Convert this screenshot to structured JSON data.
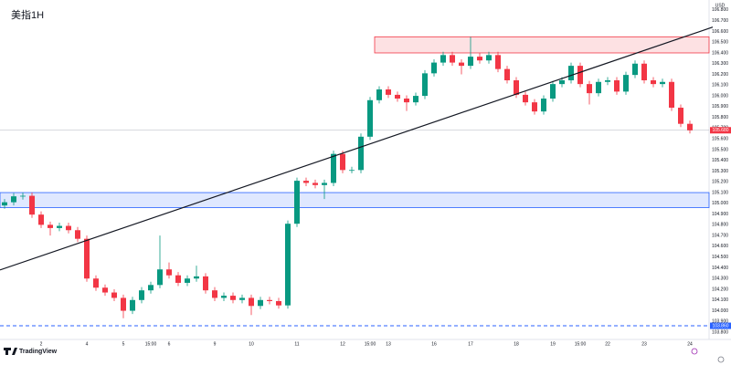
{
  "chart_data": {
    "type": "candlestick",
    "title": "美指1H",
    "currency": "USD",
    "logo": "TradingView",
    "up_color": "#089981",
    "down_color": "#f23645",
    "categories": [
      null,
      null,
      null,
      null,
      "2",
      null,
      null,
      null,
      null,
      "4",
      null,
      null,
      null,
      "5",
      null,
      null,
      "15:00",
      null,
      "6",
      null,
      null,
      null,
      null,
      "9",
      null,
      null,
      null,
      "10",
      null,
      null,
      null,
      null,
      "11",
      null,
      null,
      null,
      null,
      "12",
      null,
      null,
      "15:00",
      null,
      "13",
      null,
      null,
      null,
      null,
      "16",
      null,
      null,
      null,
      "17",
      null,
      null,
      null,
      null,
      "18",
      null,
      null,
      null,
      "19",
      null,
      null,
      "15:00",
      null,
      null,
      "22",
      null,
      null,
      null,
      "23",
      null,
      null,
      null,
      null,
      "24"
    ],
    "open": [
      104.98,
      105.01,
      105.065,
      105.07,
      104.895,
      104.8,
      104.77,
      104.79,
      104.75,
      104.67,
      104.3,
      104.215,
      104.17,
      104.12,
      104.0,
      104.1,
      104.19,
      104.24,
      104.385,
      104.33,
      104.26,
      104.3,
      104.32,
      104.19,
      104.12,
      104.14,
      104.1,
      104.12,
      104.045,
      104.1,
      104.09,
      104.05,
      104.81,
      105.21,
      105.19,
      105.17,
      105.19,
      105.46,
      105.31,
      105.31,
      105.62,
      105.96,
      106.06,
      106.01,
      105.975,
      105.94,
      106.0,
      106.21,
      106.31,
      106.38,
      106.31,
      106.28,
      106.365,
      106.33,
      106.38,
      106.25,
      106.145,
      106.01,
      105.94,
      105.855,
      105.975,
      106.11,
      106.145,
      106.28,
      106.11,
      106.025,
      106.13,
      106.145,
      106.04,
      106.195,
      106.3,
      106.145,
      106.11,
      106.13,
      105.89,
      105.74
    ],
    "high": [
      105.04,
      105.095,
      105.1,
      105.1,
      104.925,
      104.83,
      104.82,
      104.82,
      104.78,
      104.7,
      104.33,
      104.245,
      104.2,
      104.15,
      104.13,
      104.22,
      104.27,
      104.7,
      104.45,
      104.36,
      104.33,
      104.42,
      104.35,
      104.22,
      104.17,
      104.17,
      104.15,
      104.15,
      104.13,
      104.13,
      104.12,
      104.84,
      105.24,
      105.24,
      105.22,
      105.22,
      105.49,
      105.49,
      105.34,
      105.65,
      105.99,
      106.09,
      106.09,
      106.04,
      106.005,
      106.03,
      106.24,
      106.34,
      106.41,
      106.41,
      106.34,
      106.55,
      106.4,
      106.41,
      106.41,
      106.28,
      106.175,
      106.04,
      105.97,
      106.005,
      106.14,
      106.175,
      106.31,
      106.31,
      106.14,
      106.16,
      106.175,
      106.175,
      106.225,
      106.33,
      106.33,
      106.175,
      106.16,
      106.16,
      105.92,
      105.77
    ],
    "low": [
      104.95,
      104.98,
      105.035,
      104.865,
      104.77,
      104.7,
      104.74,
      104.72,
      104.64,
      104.27,
      104.185,
      104.14,
      104.09,
      103.93,
      103.97,
      104.07,
      104.16,
      104.21,
      104.3,
      104.23,
      104.23,
      104.27,
      104.16,
      104.09,
      104.09,
      104.07,
      104.07,
      103.96,
      104.015,
      104.06,
      104.02,
      104.02,
      104.78,
      105.16,
      105.14,
      105.04,
      105.16,
      105.28,
      105.28,
      105.28,
      105.59,
      105.93,
      105.98,
      105.945,
      105.86,
      105.91,
      105.97,
      106.18,
      106.28,
      106.28,
      106.2,
      106.25,
      106.3,
      106.3,
      106.22,
      106.115,
      105.98,
      105.91,
      105.825,
      105.825,
      105.945,
      106.08,
      106.115,
      106.08,
      105.92,
      105.995,
      106.1,
      106.01,
      106.01,
      106.165,
      106.115,
      106.08,
      106.08,
      105.86,
      105.71,
      105.65
    ],
    "close": [
      105.01,
      105.065,
      105.07,
      104.895,
      104.8,
      104.77,
      104.79,
      104.75,
      104.67,
      104.3,
      104.215,
      104.17,
      104.12,
      104.0,
      104.1,
      104.19,
      104.24,
      104.385,
      104.33,
      104.26,
      104.3,
      104.32,
      104.19,
      104.12,
      104.14,
      104.1,
      104.12,
      104.045,
      104.1,
      104.09,
      104.05,
      104.81,
      105.21,
      105.19,
      105.17,
      105.19,
      105.46,
      105.31,
      105.31,
      105.62,
      105.96,
      106.06,
      106.01,
      105.975,
      105.94,
      106.0,
      106.21,
      106.31,
      106.38,
      106.31,
      106.28,
      106.365,
      106.33,
      106.38,
      106.25,
      106.145,
      106.01,
      105.94,
      105.855,
      105.975,
      106.11,
      106.145,
      106.28,
      106.11,
      106.025,
      106.13,
      106.145,
      106.04,
      106.195,
      106.3,
      106.145,
      106.11,
      106.13,
      105.89,
      105.74,
      105.68
    ],
    "ylim": [
      103.75,
      106.85
    ],
    "yticks": [
      {
        "value": 103.8,
        "label": "103.800"
      },
      {
        "value": 103.9,
        "label": "103.900"
      },
      {
        "value": 104.0,
        "label": "104.000"
      },
      {
        "value": 104.1,
        "label": "104.100"
      },
      {
        "value": 104.2,
        "label": "104.200"
      },
      {
        "value": 104.3,
        "label": "104.300"
      },
      {
        "value": 104.4,
        "label": "104.400"
      },
      {
        "value": 104.5,
        "label": "104.500"
      },
      {
        "value": 104.6,
        "label": "104.600"
      },
      {
        "value": 104.7,
        "label": "104.700"
      },
      {
        "value": 104.8,
        "label": "104.800"
      },
      {
        "value": 104.9,
        "label": "104.900"
      },
      {
        "value": 105.0,
        "label": "105.000"
      },
      {
        "value": 105.1,
        "label": "105.100"
      },
      {
        "value": 105.2,
        "label": "105.200"
      },
      {
        "value": 105.3,
        "label": "105.300"
      },
      {
        "value": 105.4,
        "label": "105.400"
      },
      {
        "value": 105.5,
        "label": "105.500"
      },
      {
        "value": 105.6,
        "label": "105.600"
      },
      {
        "value": 105.7,
        "label": "105.700"
      },
      {
        "value": 105.8,
        "label": "105.800"
      },
      {
        "value": 105.9,
        "label": "105.900"
      },
      {
        "value": 106.0,
        "label": "106.000"
      },
      {
        "value": 106.1,
        "label": "106.100"
      },
      {
        "value": 106.2,
        "label": "106.200"
      },
      {
        "value": 106.3,
        "label": "106.300"
      },
      {
        "value": 106.4,
        "label": "106.400"
      },
      {
        "value": 106.5,
        "label": "106.500"
      },
      {
        "value": 106.6,
        "label": "106.600"
      },
      {
        "value": 106.7,
        "label": "106.700"
      },
      {
        "value": 106.8,
        "label": "106.800"
      }
    ],
    "grid": false,
    "zones": [
      {
        "low": 106.4,
        "high": 106.55,
        "start": 41,
        "color": "#f23645"
      },
      {
        "low": 104.96,
        "high": 105.1,
        "start": 0,
        "color": "#2962ff"
      }
    ],
    "trendline": {
      "start": 104.38,
      "end": 106.64,
      "color": "#131722"
    },
    "support": {
      "value": 103.86,
      "label": "103.860",
      "color": "#2962ff"
    },
    "last_price": {
      "value": 105.68,
      "label": "105.680",
      "color": "#f23645"
    }
  }
}
